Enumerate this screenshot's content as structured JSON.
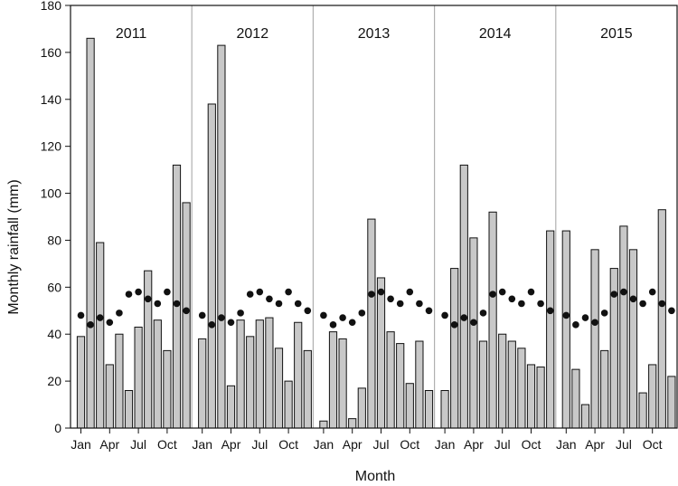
{
  "chart_data": {
    "type": "bar",
    "title": "",
    "xlabel": "Month",
    "ylabel": "Monthly rainfall (mm)",
    "ylim": [
      0,
      180
    ],
    "yticks": [
      0,
      20,
      40,
      60,
      80,
      100,
      120,
      140,
      160,
      180
    ],
    "month_tick_labels": [
      "Jan",
      "Apr",
      "Jul",
      "Oct"
    ],
    "month_tick_positions": [
      1,
      4,
      7,
      10
    ],
    "grid": false,
    "legend": "none",
    "bar_color": "#c8c8c8",
    "bar_stroke": "#111111",
    "marker_color": "#111111",
    "panel_separator_color": "#b0b0b0",
    "long_term_mean": [
      48,
      44,
      47,
      45,
      49,
      57,
      58,
      55,
      53,
      58,
      53,
      50
    ],
    "panels": [
      {
        "year": "2011",
        "values": [
          39,
          166,
          79,
          27,
          40,
          16,
          43,
          67,
          46,
          33,
          112,
          96
        ]
      },
      {
        "year": "2012",
        "values": [
          38,
          138,
          163,
          18,
          46,
          39,
          46,
          47,
          34,
          20,
          45,
          33
        ]
      },
      {
        "year": "2013",
        "values": [
          3,
          41,
          38,
          4,
          17,
          89,
          64,
          41,
          36,
          19,
          37,
          16
        ]
      },
      {
        "year": "2014",
        "values": [
          16,
          68,
          112,
          81,
          37,
          92,
          40,
          37,
          34,
          27,
          26,
          84
        ]
      },
      {
        "year": "2015",
        "values": [
          84,
          25,
          10,
          76,
          33,
          68,
          86,
          76,
          15,
          27,
          93,
          22
        ]
      }
    ]
  }
}
